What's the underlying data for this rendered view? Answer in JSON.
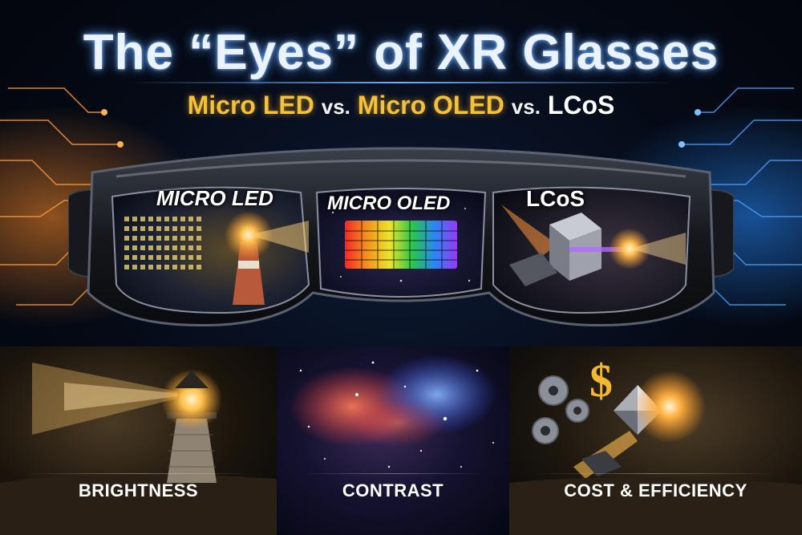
{
  "header": {
    "title": "The “Eyes” of XR Glasses",
    "subtitle": {
      "part1": "Micro LED",
      "vs1": "vs.",
      "part2": "Micro OLED",
      "vs2": "vs.",
      "part3": "LCoS"
    }
  },
  "lenses": {
    "left_label": "MICRO LED",
    "center_label": "MICRO OLED",
    "right_label": "LCoS"
  },
  "panels": [
    {
      "caption": "BRIGHTNESS",
      "icon": "lighthouse-icon"
    },
    {
      "caption": "CONTRAST",
      "icon": "galaxy-icon"
    },
    {
      "caption": "COST & EFFICIENCY",
      "icon": "gears-dollar-prism-icon"
    }
  ],
  "colors": {
    "title_glow": "#6fb0ff",
    "accent_gold": "#f4c13a",
    "left_glow": "#ff8c28",
    "right_glow": "#288cff"
  }
}
